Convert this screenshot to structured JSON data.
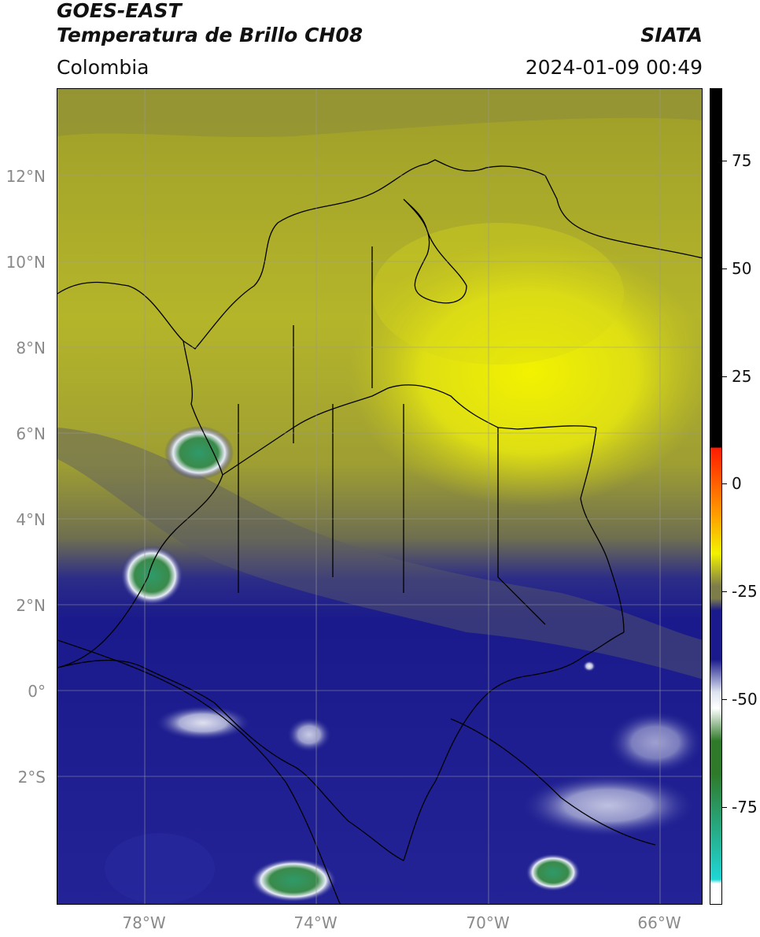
{
  "header": {
    "title_line1": "GOES-EAST",
    "title_line2": "Temperatura de Brillo CH08",
    "brand": "SIATA",
    "region": "Colombia",
    "datetime": "2024-01-09 00:49"
  },
  "map": {
    "latitude_labels": [
      "12°N",
      "10°N",
      "8°N",
      "6°N",
      "4°N",
      "2°N",
      "0°",
      "2°S"
    ],
    "longitude_labels": [
      "78°W",
      "74°W",
      "70°W",
      "66°W"
    ],
    "gridline_color": "#999999"
  },
  "colorbar": {
    "tick_labels": [
      "75",
      "50",
      "25",
      "0",
      "-25",
      "-50",
      "-75"
    ],
    "colors": {
      "black": "#000000",
      "red": "#ff1a00",
      "orange": "#ff9900",
      "yellow": "#f2f200",
      "olive": "#7d7d4a",
      "navy": "#1a1a8c",
      "light": "#dde3f0",
      "green": "#2f7a2a",
      "cyan": "#20d6d6",
      "white": "#ffffff"
    }
  }
}
